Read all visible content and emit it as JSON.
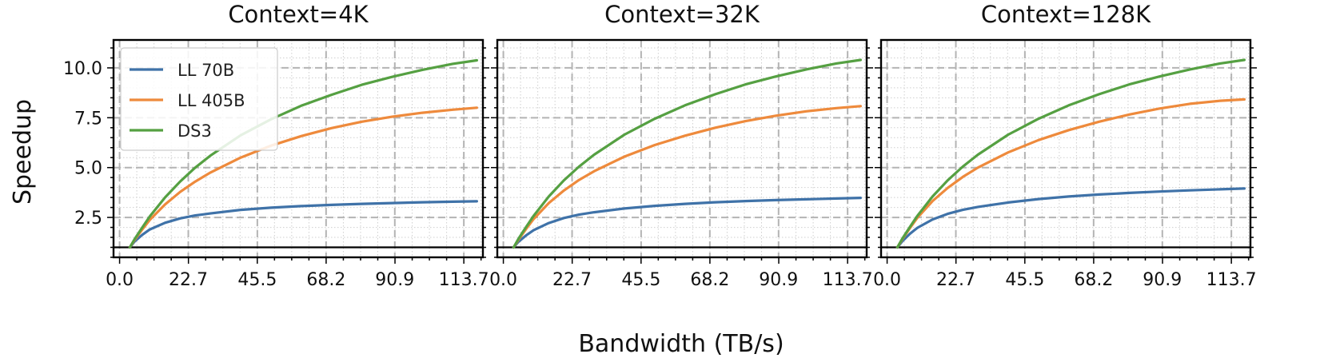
{
  "colors": {
    "LL 70B": "#3f72a8",
    "LL 405B": "#ee8a3c",
    "DS3": "#55a042",
    "major_grid": "#b4b4b4",
    "minor_grid": "#cfcfcf",
    "axes": "#000000"
  },
  "figure": {
    "ylabel": "Speedup",
    "xlabel": "Bandwidth (TB/s)",
    "legend_location": "upper-left of first panel"
  },
  "chart_data": [
    {
      "type": "line",
      "title": "Context=4K",
      "xlabel": "Bandwidth (TB/s)",
      "ylabel": "Speedup",
      "xlim": [
        -2,
        120
      ],
      "ylim": [
        0.5,
        11.4
      ],
      "xticks": [
        "0.0",
        "22.7",
        "45.5",
        "68.2",
        "90.9",
        "113.7"
      ],
      "yticks": [
        "2.5",
        "5.0",
        "7.5",
        "10.0"
      ],
      "grid": true,
      "legend": [
        "LL 70B",
        "LL 405B",
        "DS3"
      ],
      "series": [
        {
          "name": "LL 70B",
          "x": [
            3.4,
            5,
            7.5,
            10,
            15,
            20,
            25,
            30,
            40,
            50,
            60,
            70,
            80,
            90,
            100,
            110,
            118
          ],
          "y": [
            1.0,
            1.3,
            1.63,
            1.9,
            2.23,
            2.45,
            2.6,
            2.7,
            2.88,
            2.99,
            3.07,
            3.13,
            3.18,
            3.22,
            3.26,
            3.29,
            3.31
          ]
        },
        {
          "name": "LL 405B",
          "x": [
            3.4,
            5,
            7.5,
            10,
            15,
            20,
            25,
            30,
            40,
            50,
            60,
            70,
            80,
            90,
            100,
            110,
            118
          ],
          "y": [
            1.0,
            1.38,
            1.9,
            2.38,
            3.15,
            3.78,
            4.3,
            4.75,
            5.5,
            6.1,
            6.58,
            6.98,
            7.3,
            7.55,
            7.75,
            7.9,
            8.0
          ]
        },
        {
          "name": "DS3",
          "x": [
            3.4,
            5,
            7.5,
            10,
            15,
            20,
            25,
            30,
            40,
            50,
            60,
            70,
            80,
            90,
            100,
            110,
            118
          ],
          "y": [
            1.0,
            1.42,
            2.0,
            2.55,
            3.5,
            4.3,
            5.0,
            5.6,
            6.62,
            7.42,
            8.1,
            8.65,
            9.15,
            9.55,
            9.9,
            10.2,
            10.38
          ]
        }
      ]
    },
    {
      "type": "line",
      "title": "Context=32K",
      "xlabel": "Bandwidth (TB/s)",
      "ylabel": "",
      "xlim": [
        -2,
        120
      ],
      "ylim": [
        0.5,
        11.4
      ],
      "xticks": [
        "0.0",
        "22.7",
        "45.5",
        "68.2",
        "90.9",
        "113.7"
      ],
      "yticks": [
        "2.5",
        "5.0",
        "7.5",
        "10.0"
      ],
      "grid": true,
      "series": [
        {
          "name": "LL 70B",
          "x": [
            3.4,
            5,
            7.5,
            10,
            15,
            20,
            25,
            30,
            40,
            50,
            60,
            70,
            80,
            90,
            100,
            110,
            118
          ],
          "y": [
            1.0,
            1.28,
            1.6,
            1.86,
            2.22,
            2.47,
            2.64,
            2.76,
            2.95,
            3.08,
            3.18,
            3.26,
            3.32,
            3.37,
            3.41,
            3.45,
            3.48
          ]
        },
        {
          "name": "LL 405B",
          "x": [
            3.4,
            5,
            7.5,
            10,
            15,
            20,
            25,
            30,
            40,
            50,
            60,
            70,
            80,
            90,
            100,
            110,
            118
          ],
          "y": [
            1.0,
            1.38,
            1.92,
            2.42,
            3.22,
            3.85,
            4.38,
            4.82,
            5.55,
            6.13,
            6.6,
            7.0,
            7.33,
            7.6,
            7.82,
            7.98,
            8.08
          ]
        },
        {
          "name": "DS3",
          "x": [
            3.4,
            5,
            7.5,
            10,
            15,
            20,
            25,
            30,
            40,
            50,
            60,
            70,
            80,
            90,
            100,
            110,
            118
          ],
          "y": [
            1.0,
            1.43,
            2.02,
            2.58,
            3.55,
            4.36,
            5.05,
            5.65,
            6.65,
            7.45,
            8.12,
            8.68,
            9.17,
            9.57,
            9.92,
            10.22,
            10.4
          ]
        }
      ]
    },
    {
      "type": "line",
      "title": "Context=128K",
      "xlabel": "Bandwidth (TB/s)",
      "ylabel": "",
      "xlim": [
        -2,
        120
      ],
      "ylim": [
        0.5,
        11.4
      ],
      "xticks": [
        "0.0",
        "22.7",
        "45.5",
        "68.2",
        "90.9",
        "113.7"
      ],
      "yticks": [
        "2.5",
        "5.0",
        "7.5",
        "10.0"
      ],
      "grid": true,
      "series": [
        {
          "name": "LL 70B",
          "x": [
            3.4,
            5,
            7.5,
            10,
            15,
            20,
            25,
            30,
            40,
            50,
            60,
            70,
            80,
            90,
            100,
            110,
            118
          ],
          "y": [
            1.0,
            1.3,
            1.68,
            1.98,
            2.4,
            2.68,
            2.88,
            3.03,
            3.25,
            3.42,
            3.55,
            3.65,
            3.73,
            3.8,
            3.86,
            3.91,
            3.95
          ]
        },
        {
          "name": "LL 405B",
          "x": [
            3.4,
            5,
            7.5,
            10,
            15,
            20,
            25,
            30,
            40,
            50,
            60,
            70,
            80,
            90,
            100,
            110,
            118
          ],
          "y": [
            1.0,
            1.4,
            1.96,
            2.48,
            3.32,
            3.98,
            4.53,
            5.0,
            5.76,
            6.38,
            6.88,
            7.3,
            7.66,
            7.96,
            8.2,
            8.35,
            8.42
          ]
        },
        {
          "name": "DS3",
          "x": [
            3.4,
            5,
            7.5,
            10,
            15,
            20,
            25,
            30,
            40,
            50,
            60,
            70,
            80,
            90,
            100,
            110,
            118
          ],
          "y": [
            1.0,
            1.43,
            2.02,
            2.58,
            3.55,
            4.36,
            5.05,
            5.65,
            6.65,
            7.45,
            8.12,
            8.68,
            9.17,
            9.57,
            9.92,
            10.22,
            10.4
          ]
        }
      ]
    }
  ]
}
